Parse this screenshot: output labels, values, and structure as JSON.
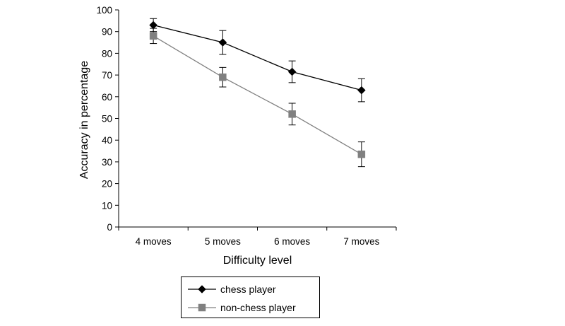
{
  "chart_data": {
    "type": "line",
    "title": "",
    "xlabel": "Difficulty level",
    "ylabel": "Accuracy in percentage",
    "categories": [
      "4 moves",
      "5 moves",
      "6 moves",
      "7 moves"
    ],
    "ylim": [
      0,
      100
    ],
    "yticks": [
      0,
      10,
      20,
      30,
      40,
      50,
      60,
      70,
      80,
      90,
      100
    ],
    "grid": false,
    "legend_position": "bottom-center",
    "series": [
      {
        "name": "chess player",
        "marker": "diamond",
        "color": "#000000",
        "values": [
          93,
          85,
          71.5,
          63
        ],
        "error": [
          3,
          5.5,
          5,
          5.3
        ]
      },
      {
        "name": "non-chess player",
        "marker": "square",
        "color": "#808080",
        "values": [
          88,
          69,
          52,
          33.5
        ],
        "error": [
          3.5,
          4.5,
          5,
          5.7
        ]
      }
    ]
  }
}
